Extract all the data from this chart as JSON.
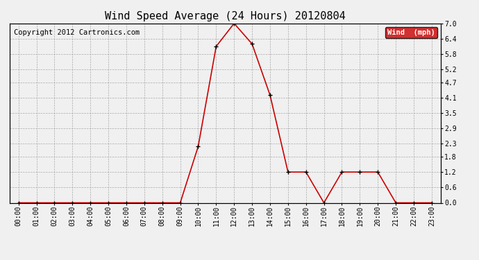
{
  "title": "Wind Speed Average (24 Hours) 20120804",
  "copyright": "Copyright 2012 Cartronics.com",
  "legend_label": "Wind  (mph)",
  "legend_bg": "#cc0000",
  "legend_text_color": "#ffffff",
  "line_color": "#cc0000",
  "marker_color": "#000000",
  "background_color": "#f0f0f0",
  "plot_bg": "#f0f0f0",
  "grid_color": "#aaaaaa",
  "x_hours": [
    "00:00",
    "01:00",
    "02:00",
    "03:00",
    "04:00",
    "05:00",
    "06:00",
    "07:00",
    "08:00",
    "09:00",
    "10:00",
    "11:00",
    "12:00",
    "13:00",
    "14:00",
    "15:00",
    "16:00",
    "17:00",
    "18:00",
    "19:00",
    "20:00",
    "21:00",
    "22:00",
    "23:00"
  ],
  "y_values": [
    0.0,
    0.0,
    0.0,
    0.0,
    0.0,
    0.0,
    0.0,
    0.0,
    0.0,
    0.0,
    2.2,
    6.1,
    7.0,
    6.2,
    4.2,
    1.2,
    1.2,
    0.0,
    1.2,
    1.2,
    1.2,
    0.0,
    0.0,
    0.0
  ],
  "yticks": [
    0.0,
    0.6,
    1.2,
    1.8,
    2.3,
    2.9,
    3.5,
    4.1,
    4.7,
    5.2,
    5.8,
    6.4,
    7.0
  ],
  "ylim": [
    0.0,
    7.0
  ],
  "title_fontsize": 11,
  "tick_fontsize": 7,
  "copyright_fontsize": 7.5
}
